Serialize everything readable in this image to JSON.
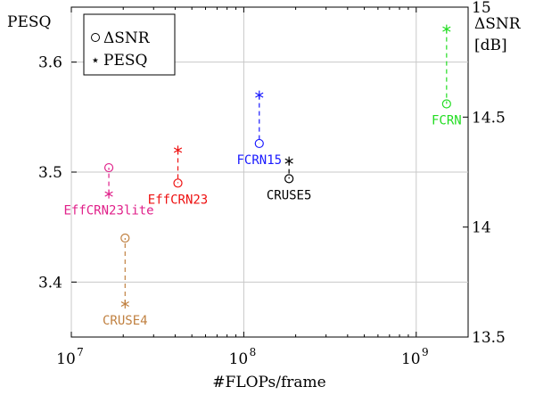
{
  "chart_data": {
    "type": "scatter",
    "x_scale": "log",
    "xlabel": "#FLOPs/frame",
    "xlim": [
      10000000,
      2000000000
    ],
    "x_tick_labels": [
      {
        "value": 10000000,
        "base": "10",
        "exp": "7"
      },
      {
        "value": 100000000,
        "base": "10",
        "exp": "8"
      },
      {
        "value": 1000000000,
        "base": "10",
        "exp": "9"
      }
    ],
    "left_axis": {
      "label": "PESQ",
      "ylim": [
        3.35,
        3.65
      ],
      "ticks": [
        3.4,
        3.5,
        3.6
      ],
      "tick_labels": [
        "3.4",
        "3.5",
        "3.6"
      ]
    },
    "right_axis": {
      "label_line1": "ΔSNR",
      "label_line2": "[dB]",
      "ylim": [
        13.5,
        15
      ],
      "ticks": [
        13.5,
        14,
        14.5,
        15
      ],
      "tick_labels": [
        "13.5",
        "14",
        "14.5",
        "15"
      ]
    },
    "grid": true,
    "legend": {
      "placement": "top-left",
      "entries": [
        {
          "marker": "○",
          "label": "ΔSNR"
        },
        {
          "marker": "⋆",
          "label": "PESQ"
        }
      ]
    },
    "series": [
      {
        "name": "ΔSNR",
        "marker": "circle",
        "axis": "right"
      },
      {
        "name": "PESQ",
        "marker": "star",
        "axis": "left"
      }
    ],
    "models": [
      {
        "label": "EffCRN23lite",
        "flops": 16500000,
        "pesq": 3.48,
        "dsnr": 14.27,
        "color": "#e0218a",
        "label_pos": "below"
      },
      {
        "label": "CRUSE4",
        "flops": 20500000,
        "pesq": 3.38,
        "dsnr": 13.95,
        "color": "#c08040",
        "label_pos": "below"
      },
      {
        "label": "EffCRN23",
        "flops": 41500000,
        "pesq": 3.52,
        "dsnr": 14.2,
        "color": "#ee1111",
        "label_pos": "below"
      },
      {
        "label": "FCRN15",
        "flops": 123000000,
        "pesq": 3.57,
        "dsnr": 14.38,
        "color": "#1a1aff",
        "label_pos": "below"
      },
      {
        "label": "CRUSE5",
        "flops": 183000000,
        "pesq": 3.51,
        "dsnr": 14.22,
        "color": "#000000",
        "label_pos": "below"
      },
      {
        "label": "FCRN",
        "flops": 1500000000,
        "pesq": 3.63,
        "dsnr": 14.56,
        "color": "#22dd22",
        "label_pos": "below"
      }
    ]
  }
}
